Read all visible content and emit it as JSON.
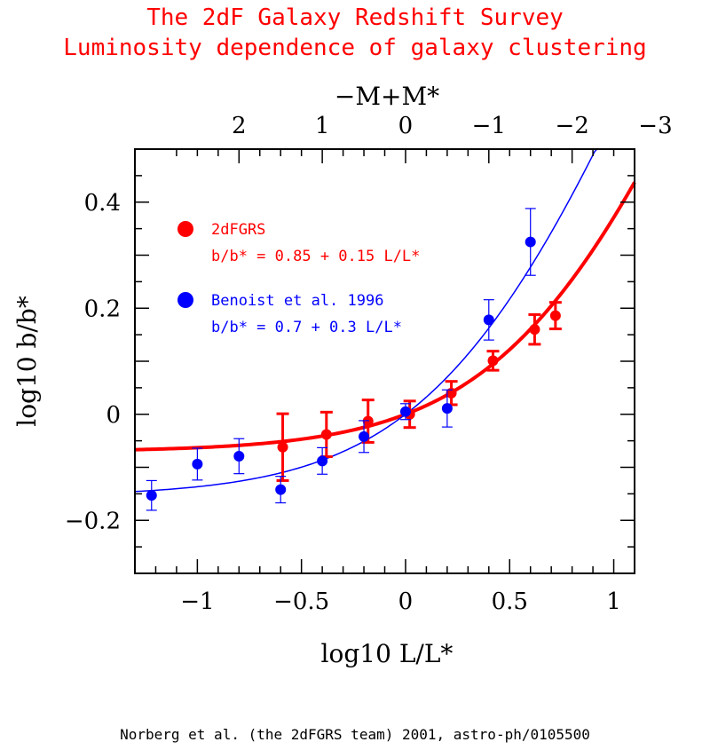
{
  "title_line1": "The 2dF Galaxy Redshift Survey",
  "title_line2": "Luminosity dependence of galaxy clustering",
  "credit": "Norberg et al. (the 2dFGRS team) 2001, astro-ph/0105500",
  "colors": {
    "red": "#ff0000",
    "blue": "#0000ff",
    "axis": "#000000"
  },
  "chart_data": {
    "type": "scatter",
    "xlabel": "log10 L/L*",
    "ylabel": "log10 b/b*",
    "top_xlabel": "−M+M*",
    "xlim": [
      -1.3,
      1.1
    ],
    "ylim": [
      -0.3,
      0.5
    ],
    "x_ticks": [
      -1,
      -0.5,
      0,
      0.5,
      1
    ],
    "x_tick_labels": [
      "−1",
      "−0.5",
      "0",
      "0.5",
      "1"
    ],
    "y_ticks": [
      -0.2,
      0,
      0.2,
      0.4
    ],
    "y_tick_labels": [
      "−0.2",
      "0",
      "0.2",
      "0.4"
    ],
    "top_ticks": [
      -3,
      -2,
      -1,
      0,
      1,
      2
    ],
    "top_tick_labels": [
      "−3",
      "−2",
      "−1",
      "0",
      "1",
      "2"
    ],
    "series": [
      {
        "name": "2dFGRS",
        "fit_label": "b/b* = 0.85 + 0.15 L/L*",
        "color": "#ff0000",
        "fit": {
          "a": 0.85,
          "b": 0.15
        },
        "points": [
          {
            "x": -0.59,
            "y": -0.062,
            "err": 0.063
          },
          {
            "x": -0.38,
            "y": -0.038,
            "err": 0.042
          },
          {
            "x": -0.18,
            "y": -0.013,
            "err": 0.04
          },
          {
            "x": 0.02,
            "y": 0.0,
            "err": 0.025
          },
          {
            "x": 0.22,
            "y": 0.04,
            "err": 0.022
          },
          {
            "x": 0.42,
            "y": 0.101,
            "err": 0.018
          },
          {
            "x": 0.62,
            "y": 0.16,
            "err": 0.028
          },
          {
            "x": 0.72,
            "y": 0.186,
            "err": 0.025
          }
        ]
      },
      {
        "name": "Benoist et al. 1996",
        "fit_label": "b/b* = 0.7 + 0.3 L/L*",
        "color": "#0000ff",
        "fit": {
          "a": 0.7,
          "b": 0.3
        },
        "points": [
          {
            "x": -1.22,
            "y": -0.153,
            "err": 0.028
          },
          {
            "x": -1.0,
            "y": -0.094,
            "err": 0.03
          },
          {
            "x": -0.8,
            "y": -0.079,
            "err": 0.033
          },
          {
            "x": -0.6,
            "y": -0.142,
            "err": 0.025
          },
          {
            "x": -0.4,
            "y": -0.088,
            "err": 0.025
          },
          {
            "x": -0.2,
            "y": -0.042,
            "err": 0.03
          },
          {
            "x": 0.0,
            "y": 0.005,
            "err": 0.015
          },
          {
            "x": 0.2,
            "y": 0.011,
            "err": 0.035
          },
          {
            "x": 0.4,
            "y": 0.178,
            "err": 0.038
          },
          {
            "x": 0.6,
            "y": 0.325,
            "err": 0.063
          }
        ]
      }
    ]
  }
}
